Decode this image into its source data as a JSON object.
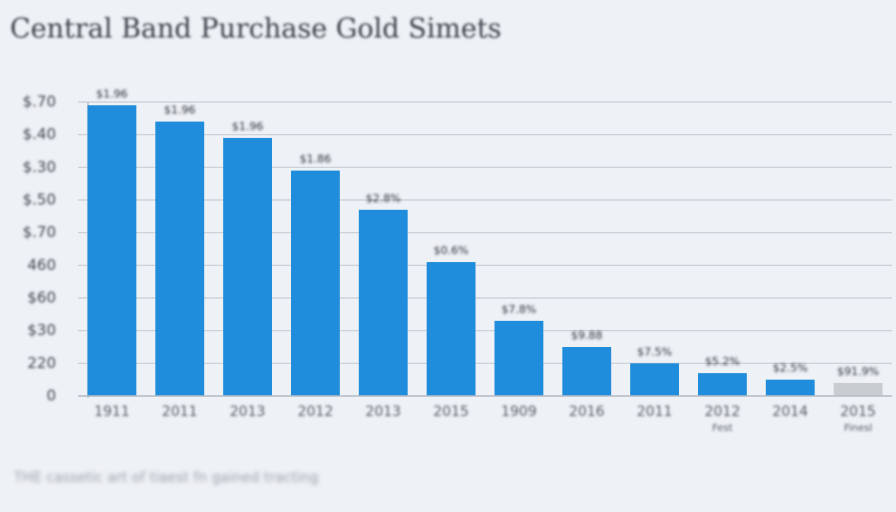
{
  "chart_data": {
    "type": "bar",
    "title": "Central Band Purchase Gold Simets",
    "categories": [
      "1911",
      "2011",
      "2013",
      "2012",
      "2013",
      "2015",
      "1909",
      "2016",
      "2011",
      "2012",
      "2014",
      "2015"
    ],
    "category_notes": [
      null,
      null,
      null,
      null,
      null,
      null,
      null,
      null,
      null,
      "Fest",
      null,
      "Finesl"
    ],
    "values": [
      8.9,
      8.4,
      7.9,
      6.9,
      5.7,
      4.1,
      2.3,
      1.5,
      1.0,
      0.7,
      0.5,
      0.4
    ],
    "annotations": [
      "$1.96",
      "$1.96",
      "$1.96",
      "$1.86",
      "$2.8%",
      "$0.6%",
      "$7.8%",
      "$9.88",
      "$7.5%",
      "$5.2%",
      "$2.5%",
      "$91.9%"
    ],
    "colors": [
      "#1f8ddb",
      "#1f8ddb",
      "#1f8ddb",
      "#1f8ddb",
      "#1f8ddb",
      "#1f8ddb",
      "#1f8ddb",
      "#1f8ddb",
      "#1f8ddb",
      "#1f8ddb",
      "#1f8ddb",
      "#c9cdd2"
    ],
    "ylim": [
      0,
      9
    ],
    "yticks": [
      {
        "value": 0,
        "label": "0"
      },
      {
        "value": 1,
        "label": "220"
      },
      {
        "value": 2,
        "label": "$30"
      },
      {
        "value": 3,
        "label": "$60"
      },
      {
        "value": 4,
        "label": "460"
      },
      {
        "value": 5,
        "label": "$.70"
      },
      {
        "value": 6,
        "label": "$.50"
      },
      {
        "value": 7,
        "label": "$.30"
      },
      {
        "value": 8,
        "label": "$.40"
      },
      {
        "value": 9,
        "label": "$.70"
      }
    ],
    "grid": true,
    "footnote": "THE cassetic art of tiaest fn gained tracting"
  }
}
